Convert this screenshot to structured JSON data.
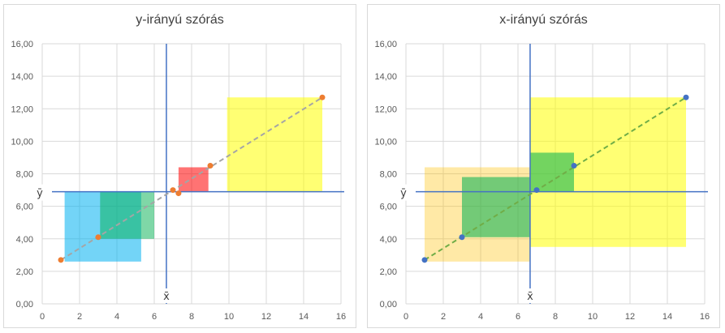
{
  "chart_data": [
    {
      "type": "scatter",
      "title": "y-irányú szórás",
      "xlim": [
        0,
        16
      ],
      "ylim": [
        0,
        16
      ],
      "x_ticks": [
        "0",
        "2",
        "4",
        "6",
        "8",
        "10",
        "12",
        "14",
        "16"
      ],
      "y_ticks": [
        "0,00",
        "2,00",
        "4,00",
        "6,00",
        "8,00",
        "10,00",
        "12,00",
        "14,00",
        "16,00"
      ],
      "grid": true,
      "point_color": "#ed7d31",
      "points": [
        {
          "x": 1,
          "y": 2.7
        },
        {
          "x": 3,
          "y": 4.1
        },
        {
          "x": 7,
          "y": 7.0
        },
        {
          "x": 7.3,
          "y": 6.8
        },
        {
          "x": 9,
          "y": 8.5
        },
        {
          "x": 15,
          "y": 12.7
        }
      ],
      "trendline": {
        "x": [
          1,
          15
        ],
        "y": [
          2.7,
          12.7
        ],
        "color": "#a5a5a5",
        "style": "dashed"
      },
      "mean_x": {
        "value": 6.65,
        "label": "x̄"
      },
      "mean_y": {
        "value": 6.9,
        "label": "ȳ"
      },
      "rectangles": [
        {
          "x0": 1.2,
          "x1": 5.3,
          "y0": 2.6,
          "y1": 6.9,
          "color": "#00b0f0",
          "opacity": 0.55
        },
        {
          "x0": 3.1,
          "x1": 6.0,
          "y0": 4.0,
          "y1": 6.9,
          "color": "#00b050",
          "opacity": 0.5
        },
        {
          "x0": 7.3,
          "x1": 8.9,
          "y0": 6.9,
          "y1": 8.4,
          "color": "#ff0000",
          "opacity": 0.55
        },
        {
          "x0": 9.9,
          "x1": 15.0,
          "y0": 6.9,
          "y1": 12.7,
          "color": "#ffff00",
          "opacity": 0.55
        }
      ]
    },
    {
      "type": "scatter",
      "title": "x-irányú szórás",
      "xlim": [
        0,
        16
      ],
      "ylim": [
        0,
        16
      ],
      "x_ticks": [
        "0",
        "2",
        "4",
        "6",
        "8",
        "10",
        "12",
        "14",
        "16"
      ],
      "y_ticks": [
        "0,00",
        "2,00",
        "4,00",
        "6,00",
        "8,00",
        "10,00",
        "12,00",
        "14,00",
        "16,00"
      ],
      "grid": true,
      "point_color": "#4472c4",
      "points": [
        {
          "x": 1,
          "y": 2.7
        },
        {
          "x": 3,
          "y": 4.1
        },
        {
          "x": 7,
          "y": 7.0
        },
        {
          "x": 9,
          "y": 8.5
        },
        {
          "x": 15,
          "y": 12.7
        }
      ],
      "trendline": {
        "x": [
          1,
          15
        ],
        "y": [
          2.7,
          12.7
        ],
        "color": "#70ad47",
        "style": "dashed"
      },
      "mean_x": {
        "value": 6.65,
        "label": "x̄"
      },
      "mean_y": {
        "value": 6.9,
        "label": "ȳ"
      },
      "rectangles": [
        {
          "x0": 1.0,
          "x1": 6.65,
          "y0": 2.6,
          "y1": 8.4,
          "color": "#ffc000",
          "opacity": 0.35
        },
        {
          "x0": 3.0,
          "x1": 6.65,
          "y0": 4.1,
          "y1": 7.8,
          "color": "#00b050",
          "opacity": 0.55
        },
        {
          "x0": 6.65,
          "x1": 15.0,
          "y0": 3.5,
          "y1": 12.7,
          "color": "#ffff00",
          "opacity": 0.55
        },
        {
          "x0": 6.65,
          "x1": 9.0,
          "y0": 6.9,
          "y1": 9.3,
          "color": "#00b050",
          "opacity": 0.55
        }
      ]
    }
  ]
}
